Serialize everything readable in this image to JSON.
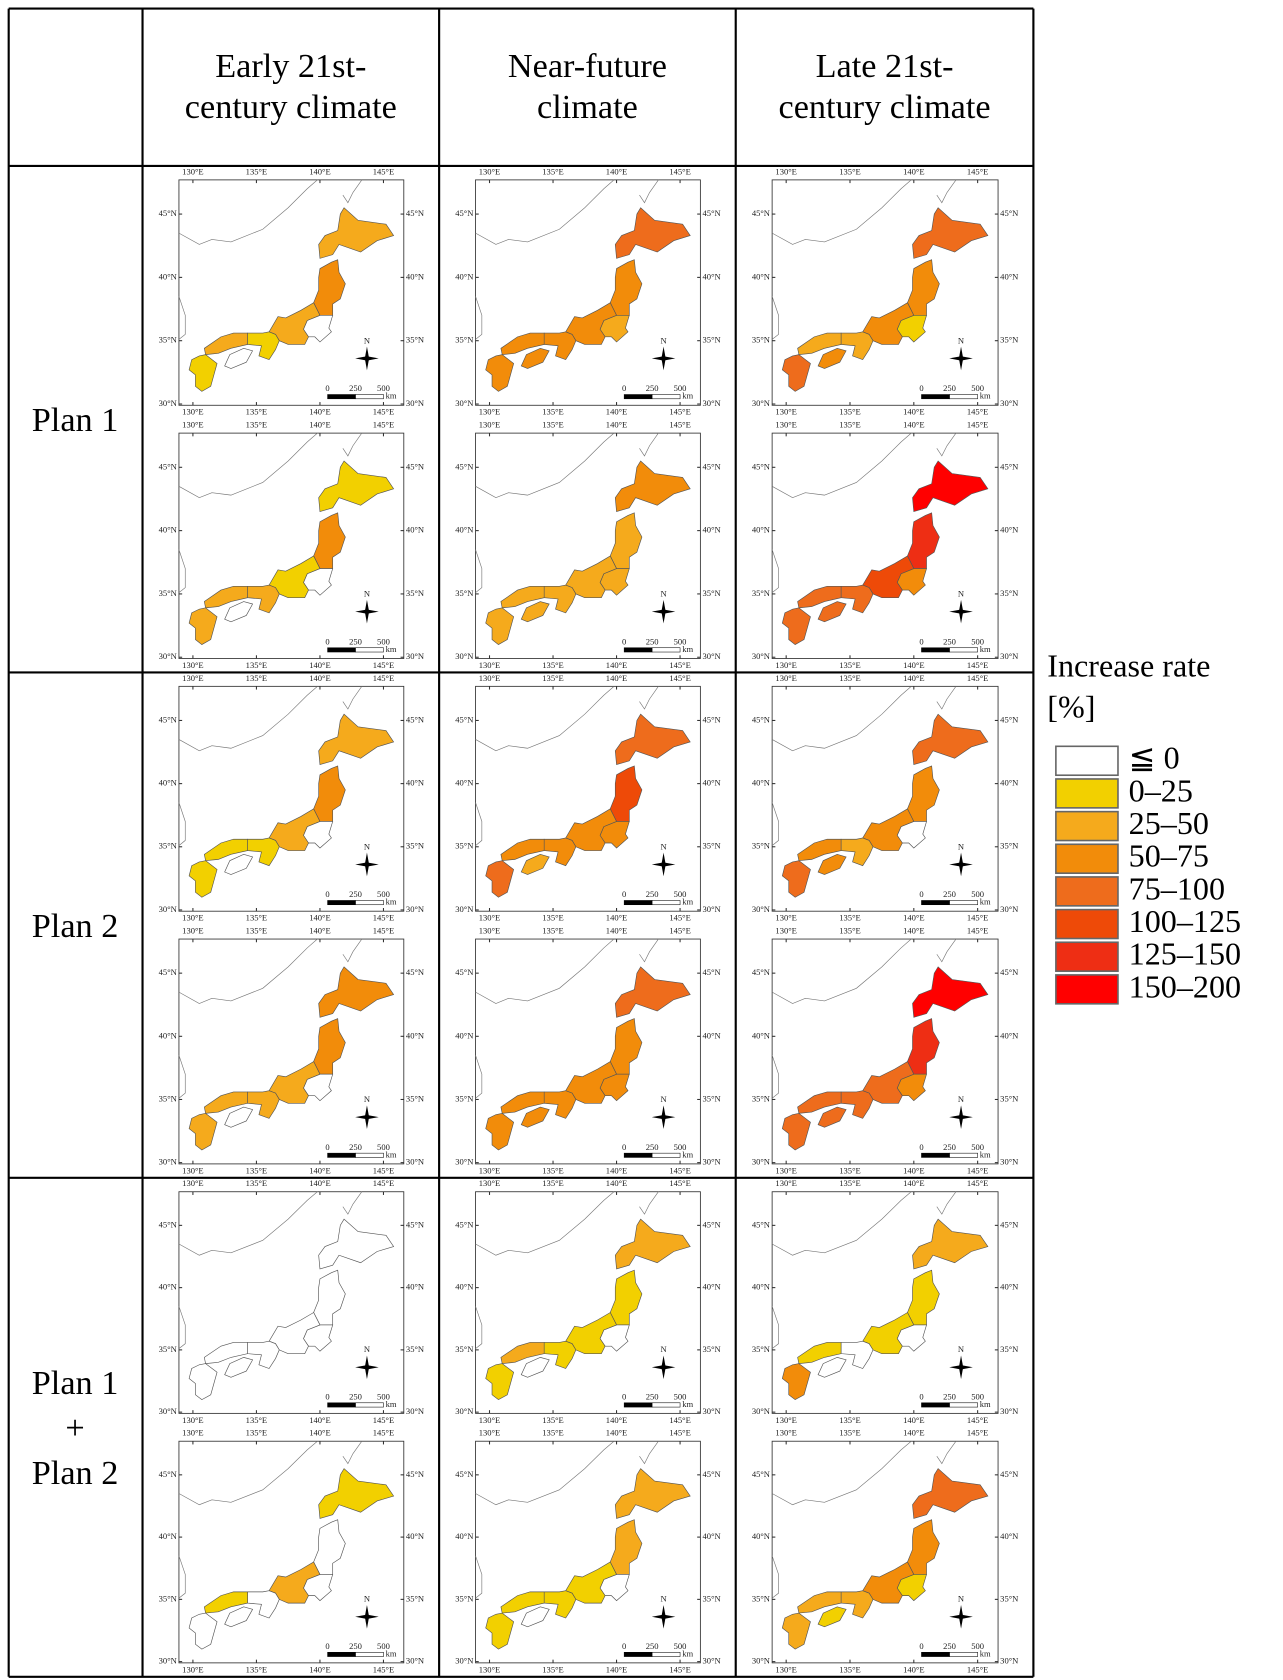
{
  "columns": [
    [
      "Early 21st-",
      "century climate"
    ],
    [
      "Near-future",
      "climate"
    ],
    [
      "Late 21st-",
      "century climate"
    ]
  ],
  "rows": [
    [
      "Plan 1"
    ],
    [
      "Plan 2"
    ],
    [
      "Plan 1",
      "+",
      "Plan 2"
    ]
  ],
  "map_axes": {
    "lonlim": [
      128.9,
      146.6
    ],
    "latlim": [
      29.9,
      47.7
    ],
    "lon_ticks": [
      {
        "value": 130,
        "label": "130°E"
      },
      {
        "value": 135,
        "label": "135°E"
      },
      {
        "value": 140,
        "label": "140°E"
      },
      {
        "value": 145,
        "label": "145°E"
      }
    ],
    "lat_ticks": [
      {
        "value": 30,
        "label": "30°N"
      },
      {
        "value": 35,
        "label": "35°N"
      },
      {
        "value": 40,
        "label": "40°N"
      },
      {
        "value": 45,
        "label": "45°N"
      }
    ]
  },
  "scale_bar": {
    "labels": [
      "0",
      "250",
      "500"
    ],
    "unit": "km"
  },
  "north": "N",
  "maps": [
    [
      [
        [
          2,
          3,
          0,
          2,
          1,
          2,
          0,
          1
        ],
        [
          1,
          3,
          0,
          1,
          2,
          2,
          0,
          2
        ]
      ],
      [
        [
          4,
          3,
          2,
          3,
          3,
          3,
          3,
          3
        ],
        [
          3,
          2,
          2,
          2,
          2,
          2,
          2,
          2
        ]
      ],
      [
        [
          4,
          3,
          1,
          3,
          2,
          2,
          3,
          4
        ],
        [
          7,
          6,
          3,
          5,
          4,
          4,
          4,
          4
        ]
      ]
    ],
    [
      [
        [
          2,
          3,
          0,
          2,
          1,
          1,
          0,
          1
        ],
        [
          3,
          3,
          0,
          2,
          2,
          2,
          0,
          2
        ]
      ],
      [
        [
          4,
          5,
          3,
          3,
          3,
          3,
          2,
          4
        ],
        [
          4,
          3,
          3,
          3,
          3,
          3,
          3,
          3
        ]
      ],
      [
        [
          4,
          3,
          0,
          3,
          2,
          3,
          3,
          4
        ],
        [
          7,
          6,
          3,
          4,
          4,
          4,
          4,
          4
        ]
      ]
    ],
    [
      [
        [
          0,
          0,
          0,
          0,
          0,
          0,
          0,
          0
        ],
        [
          1,
          0,
          0,
          2,
          0,
          1,
          0,
          0
        ]
      ],
      [
        [
          2,
          1,
          0,
          1,
          1,
          2,
          0,
          1
        ],
        [
          2,
          2,
          0,
          1,
          1,
          1,
          0,
          1
        ]
      ],
      [
        [
          2,
          1,
          0,
          1,
          0,
          1,
          0,
          3
        ],
        [
          4,
          3,
          1,
          3,
          2,
          2,
          1,
          2
        ]
      ]
    ]
  ],
  "legend": {
    "title": "Increase rate",
    "unit": "[%]",
    "classes": [
      {
        "label": "≦ 0",
        "color": "#ffffff"
      },
      {
        "label": "0–25",
        "color": "#f2d000"
      },
      {
        "label": "25–50",
        "color": "#f5aa1c"
      },
      {
        "label": "50–75",
        "color": "#f28c0a"
      },
      {
        "label": "75–100",
        "color": "#ee6c1c"
      },
      {
        "label": "100–125",
        "color": "#ee4a08"
      },
      {
        "label": "125–150",
        "color": "#ee2e14"
      },
      {
        "label": "150–200",
        "color": "#ff0000"
      }
    ]
  }
}
